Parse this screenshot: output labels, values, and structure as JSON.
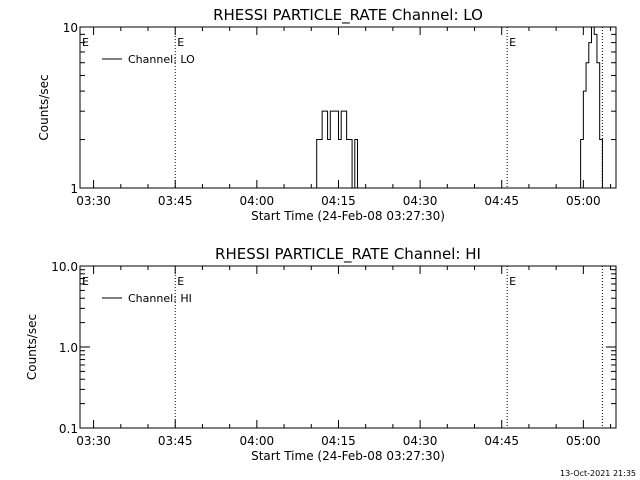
{
  "footer": {
    "timestamp": "13-Oct-2021 21:35"
  },
  "chart_data": [
    {
      "type": "line",
      "title": "RHESSI PARTICLE_RATE Channel: LO",
      "xlabel": "Start Time (24-Feb-08 03:27:30)",
      "ylabel": "Counts/sec",
      "yscale": "log",
      "xlim": [
        "03:27:30",
        "05:06:00"
      ],
      "ylim": [
        1,
        10
      ],
      "x_ticks": [
        "03:30",
        "03:45",
        "04:00",
        "04:15",
        "04:30",
        "04:45",
        "05:00"
      ],
      "y_ticks": [
        "1",
        "10"
      ],
      "legend": {
        "label": "Channel: LO",
        "placement": "top-left"
      },
      "event_markers": [
        {
          "time": "03:45:00",
          "label": "E"
        },
        {
          "time": "04:46:00",
          "label": "E"
        },
        {
          "time": "05:03:30",
          "label": ""
        }
      ],
      "edge_markers": [
        {
          "side": "left",
          "label": "E"
        }
      ],
      "series": [
        {
          "x": [
            "04:10:30",
            "04:11:00",
            "04:11:30",
            "04:12:00",
            "04:12:30",
            "04:13:00",
            "04:13:30",
            "04:14:00",
            "04:14:30",
            "04:15:00",
            "04:15:30",
            "04:16:00",
            "04:16:30",
            "04:17:00",
            "04:17:30",
            "04:18:00",
            "04:18:30",
            "04:19:00",
            "04:19:30",
            "04:59:00",
            "04:59:30",
            "05:00:00",
            "05:00:30",
            "05:01:00",
            "05:01:30",
            "05:02:00",
            "05:02:30",
            "05:03:00",
            "05:03:30"
          ],
          "y": [
            1,
            2,
            2,
            3,
            3,
            2,
            3,
            3,
            3,
            2,
            3,
            3,
            2,
            2,
            1,
            2,
            1,
            1,
            1,
            1,
            2,
            4,
            6,
            8,
            10,
            9,
            6,
            2,
            1
          ]
        }
      ]
    },
    {
      "type": "line",
      "title": "RHESSI PARTICLE_RATE Channel: HI",
      "xlabel": "Start Time (24-Feb-08 03:27:30)",
      "ylabel": "Counts/sec",
      "yscale": "log",
      "xlim": [
        "03:27:30",
        "05:06:00"
      ],
      "ylim": [
        0.1,
        10
      ],
      "x_ticks": [
        "03:30",
        "03:45",
        "04:00",
        "04:15",
        "04:30",
        "04:45",
        "05:00"
      ],
      "y_ticks": [
        "0.1",
        "1.0",
        "10.0"
      ],
      "legend": {
        "label": "Channel: HI",
        "placement": "top-left"
      },
      "event_markers": [
        {
          "time": "03:45:00",
          "label": "E"
        },
        {
          "time": "04:46:00",
          "label": "E"
        },
        {
          "time": "05:03:30",
          "label": ""
        }
      ],
      "edge_markers": [
        {
          "side": "left",
          "label": "E"
        }
      ],
      "series": [
        {
          "x": [],
          "y": []
        }
      ]
    }
  ]
}
